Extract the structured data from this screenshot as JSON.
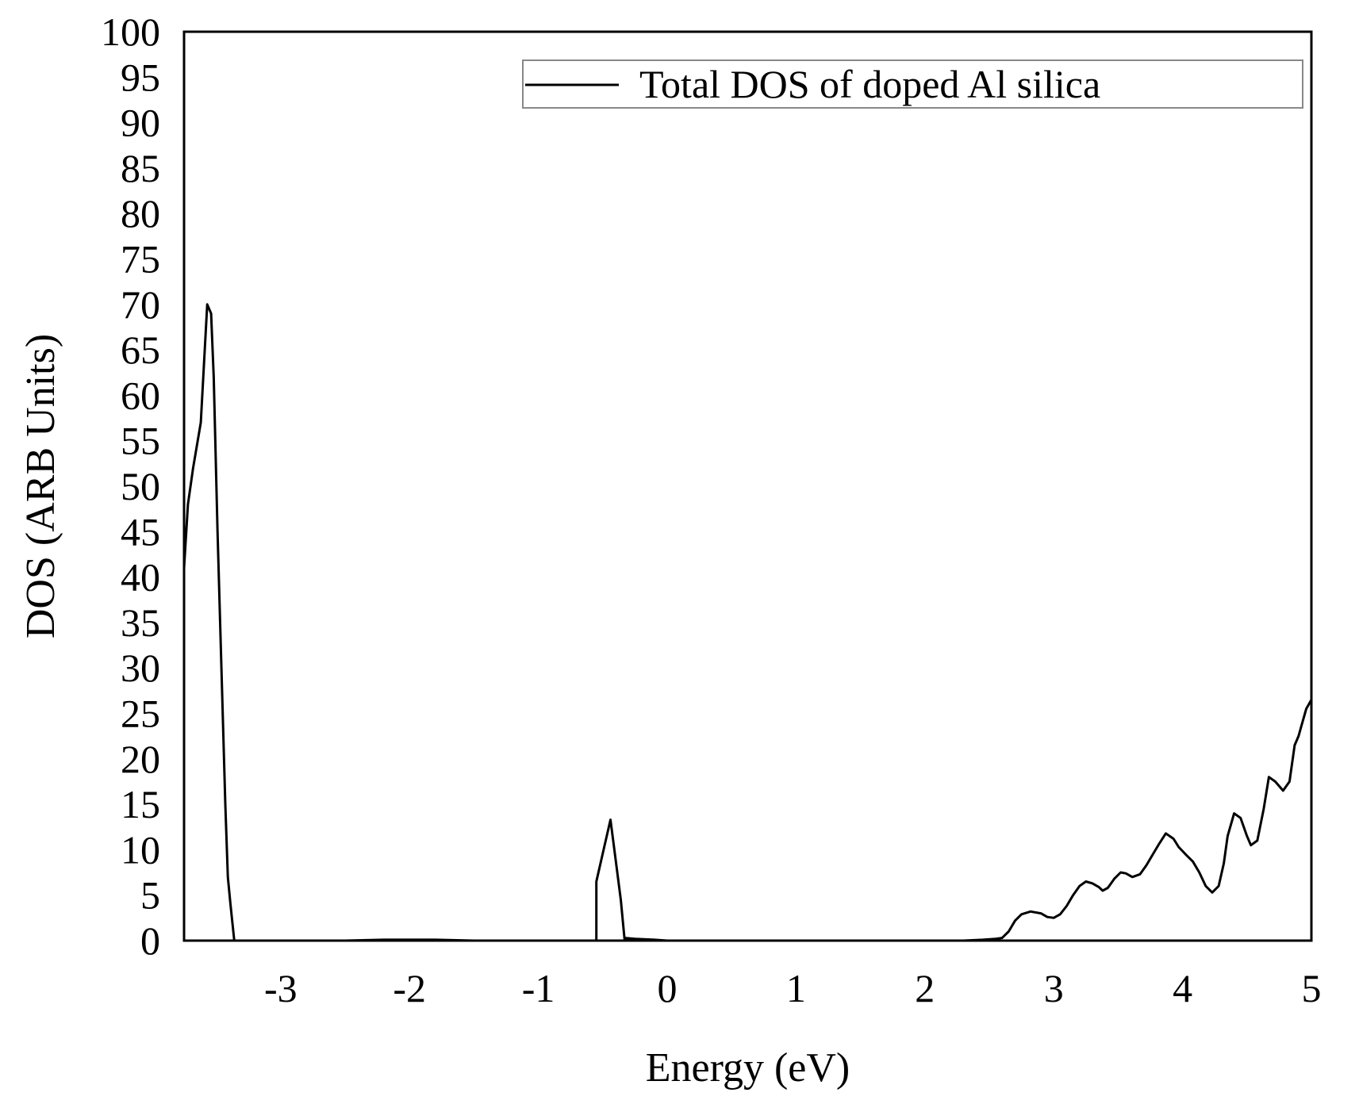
{
  "chart_data": {
    "type": "line",
    "title": "",
    "xlabel": "Energy (eV)",
    "ylabel": "DOS (ARB Units)",
    "xlim": [
      -3.75,
      5
    ],
    "ylim": [
      0,
      100
    ],
    "x_ticks": [
      -3,
      -2,
      -1,
      0,
      1,
      2,
      3,
      4,
      5
    ],
    "x_tick_labels": [
      "-3",
      "-2",
      "-1",
      "0",
      "1",
      "2",
      "3",
      "4",
      "5"
    ],
    "y_ticks": [
      0,
      5,
      10,
      15,
      20,
      25,
      30,
      35,
      40,
      45,
      50,
      55,
      60,
      65,
      70,
      75,
      80,
      85,
      90,
      95,
      100
    ],
    "y_tick_labels": [
      "0",
      "5",
      "10",
      "15",
      "20",
      "25",
      "30",
      "35",
      "40",
      "45",
      "50",
      "55",
      "60",
      "65",
      "70",
      "75",
      "80",
      "85",
      "90",
      "95",
      "100"
    ],
    "grid": false,
    "legend_position": "top-right",
    "line_color": "#000000",
    "series": [
      {
        "name": "Total DOS of doped Al silica",
        "x": [
          -3.75,
          -3.72,
          -3.68,
          -3.62,
          -3.57,
          -3.54,
          -3.52,
          -3.49,
          -3.46,
          -3.43,
          -3.41,
          -3.39,
          -3.36,
          -3.33,
          -3.31,
          -3.28,
          -3.0,
          -2.5,
          -2.2,
          -2.0,
          -1.8,
          -1.5,
          -1.0,
          -0.6,
          -0.55,
          -0.55,
          -0.51,
          -0.44,
          -0.41,
          -0.36,
          -0.33,
          -0.33,
          -0.25,
          -0.1,
          0,
          0.5,
          1.0,
          1.5,
          2.0,
          2.3,
          2.45,
          2.55,
          2.6,
          2.65,
          2.7,
          2.75,
          2.82,
          2.9,
          2.95,
          3.0,
          3.05,
          3.1,
          3.15,
          3.2,
          3.25,
          3.3,
          3.35,
          3.38,
          3.42,
          3.47,
          3.52,
          3.56,
          3.61,
          3.67,
          3.72,
          3.77,
          3.82,
          3.87,
          3.93,
          3.97,
          4.03,
          4.08,
          4.13,
          4.18,
          4.23,
          4.28,
          4.32,
          4.35,
          4.4,
          4.45,
          4.5,
          4.53,
          4.58,
          4.63,
          4.67,
          4.72,
          4.78,
          4.83,
          4.87,
          4.9,
          4.92,
          4.96,
          5.0
        ],
        "values": [
          41,
          48,
          52,
          57,
          70,
          69,
          62,
          45,
          30,
          15,
          7,
          4,
          0,
          0,
          0,
          0,
          0,
          0,
          0.1,
          0.1,
          0.1,
          0,
          0,
          0,
          0,
          6.5,
          9,
          13.3,
          10,
          4.5,
          0,
          0.3,
          0.2,
          0.1,
          0,
          0,
          0,
          0,
          0,
          0,
          0.1,
          0.2,
          0.3,
          1.0,
          2.2,
          2.9,
          3.2,
          3.0,
          2.6,
          2.5,
          2.9,
          3.8,
          5.0,
          6.0,
          6.5,
          6.3,
          5.9,
          5.5,
          5.8,
          6.8,
          7.5,
          7.4,
          7.0,
          7.3,
          8.3,
          9.5,
          10.7,
          11.8,
          11.2,
          10.3,
          9.4,
          8.7,
          7.5,
          6.0,
          5.3,
          6.0,
          8.5,
          11.5,
          14.0,
          13.5,
          11.5,
          10.5,
          11.0,
          14.5,
          18.0,
          17.5,
          16.5,
          17.5,
          21.5,
          22.5,
          23.5,
          25.5,
          26.5
        ]
      }
    ]
  }
}
